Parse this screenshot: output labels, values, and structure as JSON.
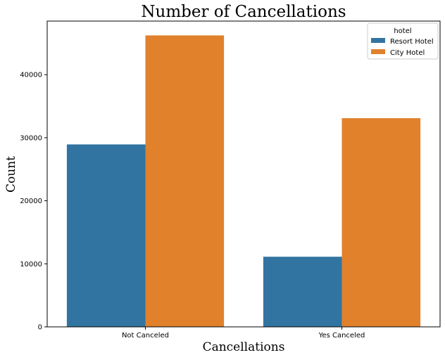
{
  "chart_data": {
    "type": "bar",
    "title": "Number of Cancellations",
    "xlabel": "Cancellations",
    "ylabel": "Count",
    "categories": [
      "Not Canceled",
      "Yes Canceled"
    ],
    "series": [
      {
        "name": "Resort Hotel",
        "color": "#3274a1",
        "values": [
          28938,
          11122
        ]
      },
      {
        "name": "City Hotel",
        "color": "#e1812c",
        "values": [
          46228,
          33102
        ]
      }
    ],
    "ylim": [
      0,
      48500
    ],
    "yticks": [
      0,
      10000,
      20000,
      30000,
      40000
    ],
    "grid": false,
    "legend": {
      "title": "hotel",
      "placement": "top-right"
    }
  }
}
